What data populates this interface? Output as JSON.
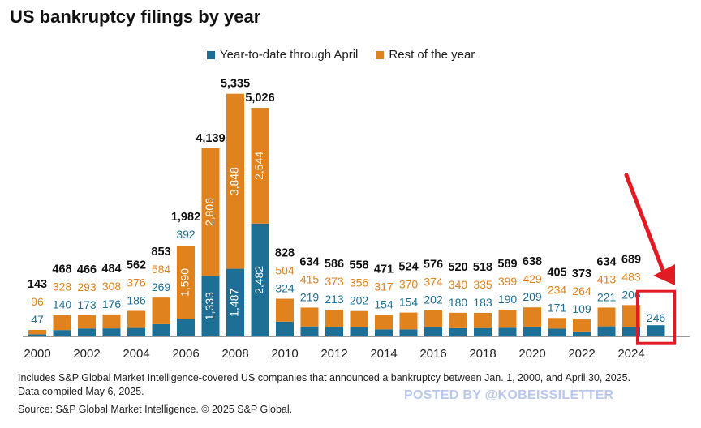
{
  "title": "US bankruptcy filings by year",
  "colors": {
    "ytd": "#1e6f96",
    "rest": "#e0831e",
    "highlight": "#e01b24",
    "axis": "#999999"
  },
  "chart_data": {
    "type": "bar",
    "stacked": true,
    "categories": [
      "2000",
      "2001",
      "2002",
      "2003",
      "2004",
      "2005",
      "2006",
      "2007",
      "2008",
      "2009",
      "2010",
      "2011",
      "2012",
      "2013",
      "2014",
      "2015",
      "2016",
      "2017",
      "2018",
      "2019",
      "2020",
      "2021",
      "2022",
      "2023",
      "2024",
      "2025"
    ],
    "x_tick_labels": [
      "2000",
      "2002",
      "2004",
      "2006",
      "2008",
      "2010",
      "2012",
      "2014",
      "2016",
      "2018",
      "2020",
      "2022",
      "2024"
    ],
    "series": [
      {
        "name": "Year-to-date through April",
        "values": [
          47,
          140,
          173,
          176,
          186,
          269,
          392,
          1333,
          1487,
          2482,
          324,
          219,
          213,
          202,
          154,
          154,
          202,
          180,
          183,
          190,
          209,
          171,
          109,
          221,
          206,
          246
        ]
      },
      {
        "name": "Rest of the year",
        "values": [
          96,
          328,
          293,
          308,
          376,
          584,
          1590,
          2806,
          3848,
          2544,
          504,
          415,
          373,
          356,
          317,
          370,
          374,
          340,
          335,
          399,
          429,
          234,
          264,
          413,
          483,
          null
        ]
      }
    ],
    "ytd_labels": [
      "47",
      "140",
      "173",
      "176",
      "186",
      "269",
      "392",
      "1,333",
      "1,487",
      "2,482",
      "324",
      "219",
      "213",
      "202",
      "154",
      "154",
      "202",
      "180",
      "183",
      "190",
      "209",
      "171",
      "109",
      "221",
      "206",
      "246"
    ],
    "rest_labels": [
      "96",
      "328",
      "293",
      "308",
      "376",
      "584",
      "1,590",
      "2,806",
      "3,848",
      "2,544",
      "504",
      "415",
      "373",
      "356",
      "317",
      "370",
      "374",
      "340",
      "335",
      "399",
      "429",
      "234",
      "264",
      "413",
      "483",
      ""
    ],
    "total_labels": [
      "143",
      "468",
      "466",
      "484",
      "562",
      "853",
      "1,982",
      "4,139",
      "5,335",
      "5,026",
      "828",
      "634",
      "586",
      "558",
      "471",
      "524",
      "576",
      "520",
      "518",
      "589",
      "638",
      "405",
      "373",
      "634",
      "689",
      ""
    ],
    "highlight_category": "2025",
    "legend": {
      "position": "top"
    },
    "grid": false
  },
  "footnote": "Includes S&P Global Market Intelligence-covered US companies that announced a bankruptcy between Jan. 1, 2000, and April 30, 2025.  Data compiled May 6, 2025.",
  "source": "Source: S&P Global Market Intelligence.  © 2025 S&P Global.",
  "watermark": "POSTED BY @KOBEISSILETTER"
}
